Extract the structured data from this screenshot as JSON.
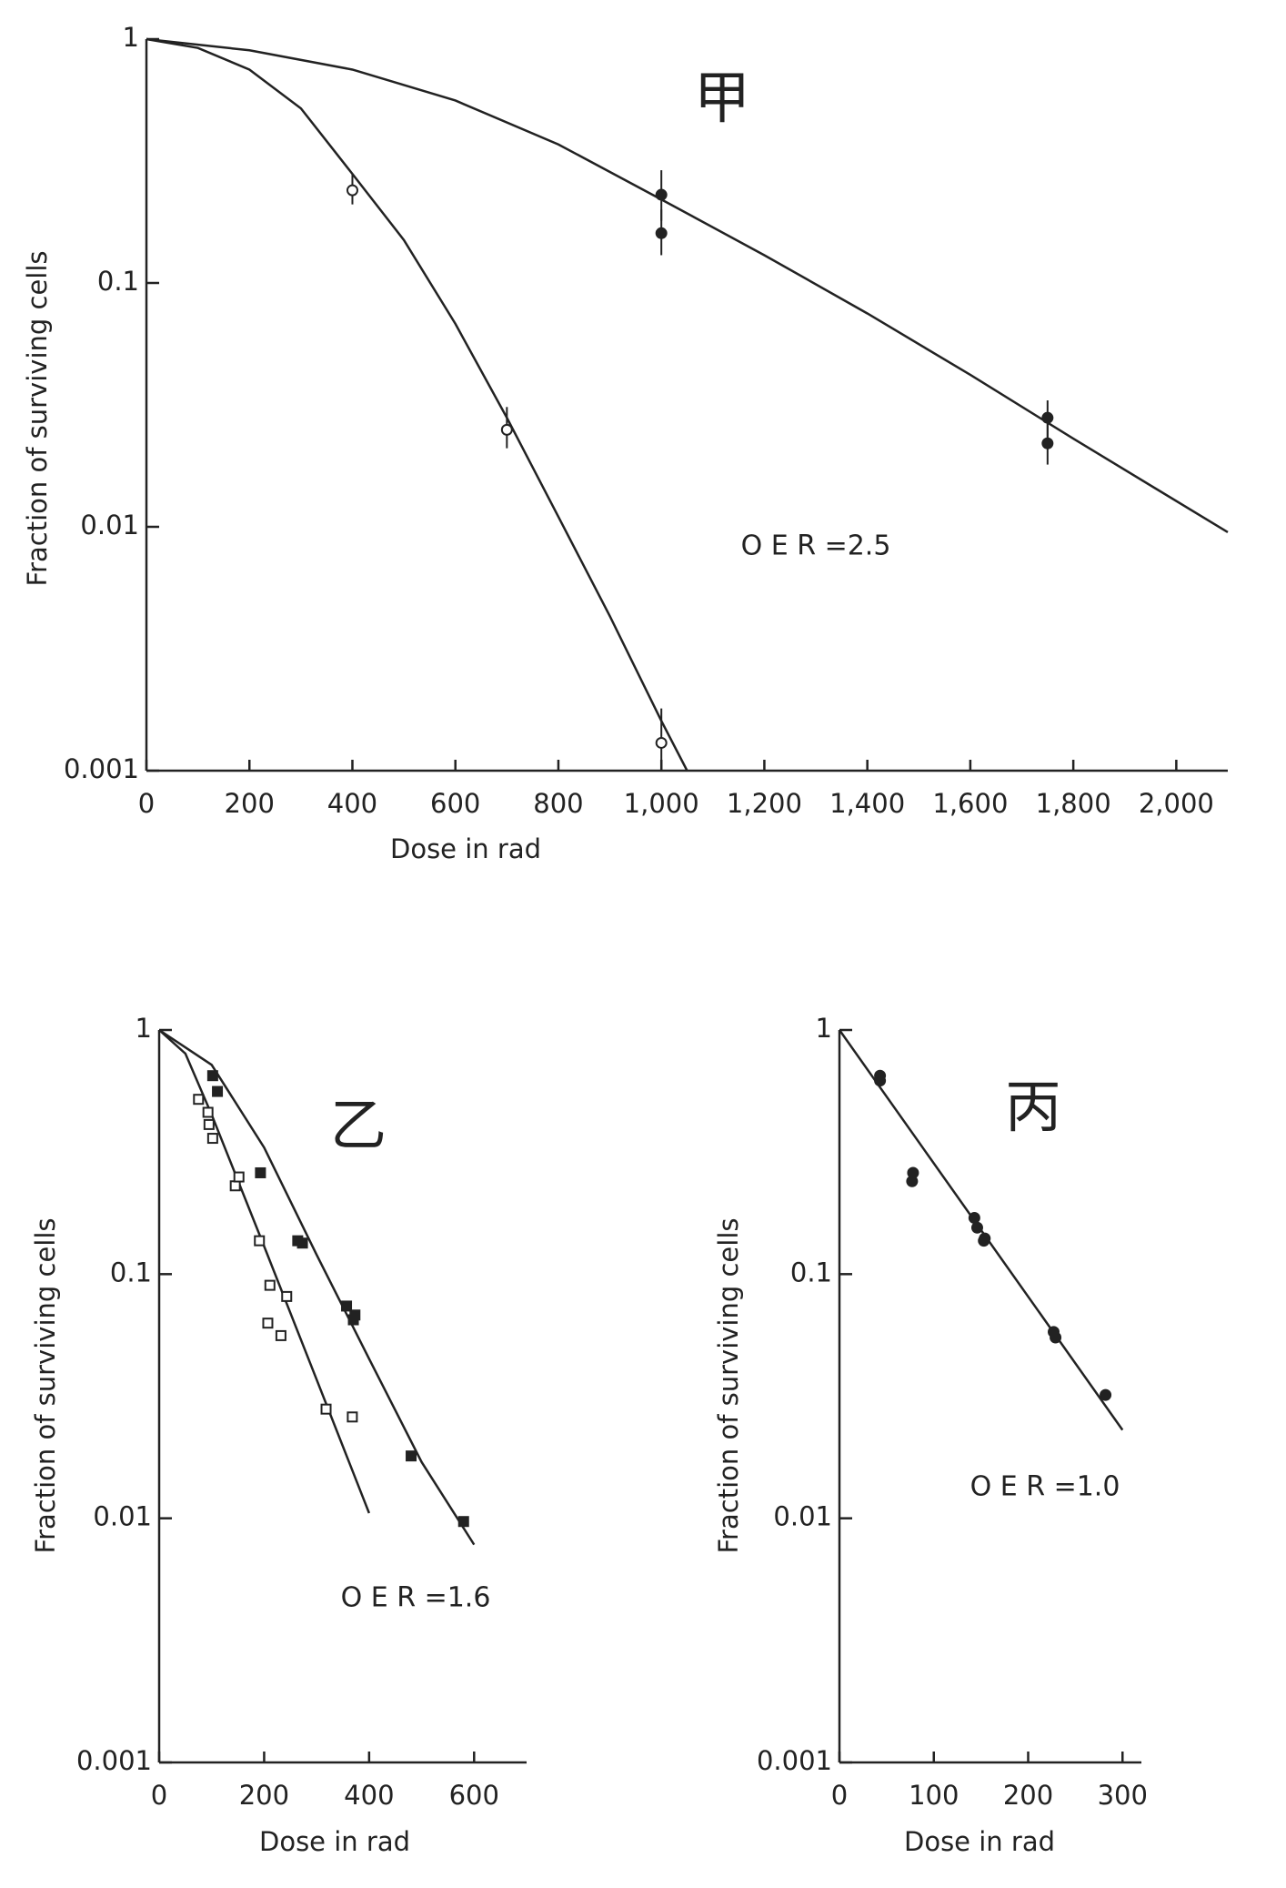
{
  "chart_data": [
    {
      "type": "scatter",
      "log_y": true,
      "xlim": [
        0,
        2100
      ],
      "ylim": [
        0.001,
        1
      ],
      "xticks": [
        0,
        200,
        400,
        600,
        800,
        {
          "value": 1000,
          "label": "1,000"
        },
        {
          "value": 1200,
          "label": "1,200"
        },
        {
          "value": 1400,
          "label": "1,400"
        },
        {
          "value": 1600,
          "label": "1,600"
        },
        {
          "value": 1800,
          "label": "1,800"
        },
        {
          "value": 2000,
          "label": "2,000"
        }
      ],
      "yticks": [
        1,
        0.1,
        0.01,
        0.001
      ],
      "x_label": "Dose in rad",
      "y_label": "Fraction of surviving cells",
      "annotations": [
        "甲",
        "O E R =2.5"
      ],
      "color": "#222222",
      "series": [
        {
          "marker": "line",
          "x": [
            0,
            200,
            400,
            600,
            800,
            1000,
            1200,
            1400,
            1600,
            1800,
            2100
          ],
          "values": [
            1,
            0.9,
            0.75,
            0.56,
            0.37,
            0.22,
            0.13,
            0.075,
            0.042,
            0.023,
            0.0095
          ]
        },
        {
          "marker": "line",
          "x": [
            0,
            100,
            200,
            300,
            400,
            500,
            600,
            700,
            800,
            900,
            1000,
            1050
          ],
          "values": [
            1,
            0.92,
            0.75,
            0.52,
            0.28,
            0.15,
            0.068,
            0.028,
            0.011,
            0.0043,
            0.0016,
            0.001
          ]
        },
        {
          "marker": "open-circle",
          "x": [
            400,
            700,
            1000
          ],
          "values": [
            0.24,
            0.025,
            0.0013
          ],
          "err_low": [
            0.21,
            0.021,
            0.001
          ],
          "err_high": [
            0.28,
            0.031,
            0.0018
          ]
        },
        {
          "marker": "filled-circle",
          "x": [
            1000,
            1000,
            1750,
            1750
          ],
          "values": [
            0.23,
            0.16,
            0.028,
            0.022
          ],
          "err_low": [
            0.18,
            0.13,
            0.023,
            0.018
          ],
          "err_high": [
            0.29,
            0.2,
            0.033,
            0.027
          ]
        }
      ]
    },
    {
      "type": "scatter",
      "log_y": true,
      "xlim": [
        0,
        700
      ],
      "ylim": [
        0.001,
        1
      ],
      "xticks": [
        0,
        200,
        400,
        600
      ],
      "yticks": [
        1,
        0.1,
        0.01,
        0.001
      ],
      "x_label": "Dose in rad",
      "y_label": "Fraction of surviving cells",
      "annotations": [
        "乙",
        "O E R =1.6"
      ],
      "color": "#222222",
      "series": [
        {
          "marker": "line",
          "x": [
            0,
            50,
            100,
            200,
            300,
            400
          ],
          "values": [
            1,
            0.8,
            0.45,
            0.13,
            0.037,
            0.0105
          ]
        },
        {
          "marker": "line",
          "x": [
            0,
            100,
            200,
            300,
            400,
            500,
            600
          ],
          "values": [
            1,
            0.72,
            0.33,
            0.12,
            0.045,
            0.017,
            0.0078
          ]
        },
        {
          "marker": "open-square",
          "x": [
            75,
            93,
            95,
            102,
            145,
            152,
            191,
            211,
            207,
            232,
            243,
            318,
            368
          ],
          "values": [
            0.52,
            0.46,
            0.41,
            0.36,
            0.23,
            0.25,
            0.137,
            0.09,
            0.063,
            0.056,
            0.081,
            0.028,
            0.026
          ]
        },
        {
          "marker": "filled-square",
          "x": [
            102,
            111,
            193,
            264,
            273,
            357,
            370,
            373,
            480,
            580
          ],
          "values": [
            0.65,
            0.56,
            0.26,
            0.137,
            0.134,
            0.074,
            0.065,
            0.068,
            0.018,
            0.0097
          ]
        }
      ]
    },
    {
      "type": "scatter",
      "log_y": true,
      "xlim": [
        0,
        320
      ],
      "ylim": [
        0.001,
        1
      ],
      "xticks": [
        0,
        100,
        200,
        300
      ],
      "yticks": [
        1,
        0.1,
        0.01,
        0.001
      ],
      "x_label": "Dose in rad",
      "y_label": "Fraction of surviving cells",
      "annotations": [
        "丙",
        "O E R =1.0"
      ],
      "color": "#222222",
      "series": [
        {
          "marker": "line",
          "x": [
            0,
            300
          ],
          "values": [
            1,
            0.023
          ]
        },
        {
          "marker": "filled-circle",
          "x": [
            43,
            43,
            77,
            78,
            143,
            146,
            153,
            154,
            227,
            229,
            282
          ],
          "values": [
            0.65,
            0.62,
            0.24,
            0.26,
            0.17,
            0.155,
            0.137,
            0.14,
            0.058,
            0.055,
            0.032
          ]
        }
      ]
    }
  ]
}
